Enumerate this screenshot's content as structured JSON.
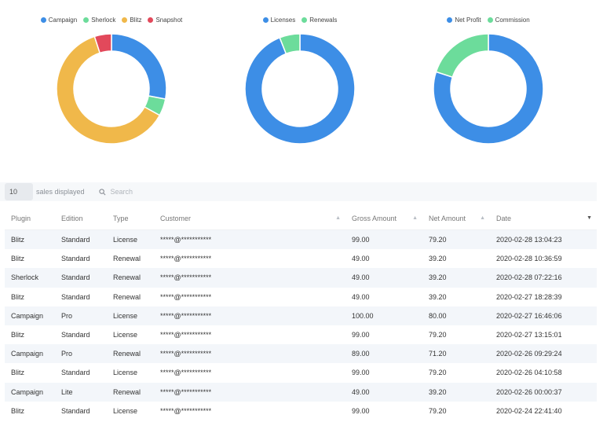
{
  "chart_data": [
    {
      "type": "pie",
      "donut": true,
      "categories": [
        "Campaign",
        "Sherlock",
        "Blitz",
        "Snapshot"
      ],
      "values": [
        28,
        5,
        62,
        5
      ],
      "colors": [
        "#3d8ee6",
        "#6cdc9b",
        "#f0b84a",
        "#e2495b"
      ]
    },
    {
      "type": "pie",
      "donut": true,
      "categories": [
        "Licenses",
        "Renewals"
      ],
      "values": [
        94,
        6
      ],
      "colors": [
        "#3d8ee6",
        "#6cdc9b"
      ]
    },
    {
      "type": "pie",
      "donut": true,
      "categories": [
        "Net Profit",
        "Commission"
      ],
      "values": [
        80,
        20
      ],
      "colors": [
        "#3d8ee6",
        "#6cdc9b"
      ]
    }
  ],
  "toolbar": {
    "per_page": "10",
    "per_page_label": "sales displayed",
    "search_placeholder": "Search"
  },
  "table": {
    "columns": [
      "Plugin",
      "Edition",
      "Type",
      "Customer",
      "Gross Amount",
      "Net Amount",
      "Date"
    ],
    "rows": [
      [
        "Blitz",
        "Standard",
        "License",
        "*****@***********",
        "99.00",
        "79.20",
        "2020-02-28 13:04:23"
      ],
      [
        "Blitz",
        "Standard",
        "Renewal",
        "*****@***********",
        "49.00",
        "39.20",
        "2020-02-28 10:36:59"
      ],
      [
        "Sherlock",
        "Standard",
        "Renewal",
        "*****@***********",
        "49.00",
        "39.20",
        "2020-02-28 07:22:16"
      ],
      [
        "Blitz",
        "Standard",
        "Renewal",
        "*****@***********",
        "49.00",
        "39.20",
        "2020-02-27 18:28:39"
      ],
      [
        "Campaign",
        "Pro",
        "License",
        "*****@***********",
        "100.00",
        "80.00",
        "2020-02-27 16:46:06"
      ],
      [
        "Blitz",
        "Standard",
        "License",
        "*****@***********",
        "99.00",
        "79.20",
        "2020-02-27 13:15:01"
      ],
      [
        "Campaign",
        "Pro",
        "Renewal",
        "*****@***********",
        "89.00",
        "71.20",
        "2020-02-26 09:29:24"
      ],
      [
        "Blitz",
        "Standard",
        "License",
        "*****@***********",
        "99.00",
        "79.20",
        "2020-02-26 04:10:58"
      ],
      [
        "Campaign",
        "Lite",
        "Renewal",
        "*****@***********",
        "49.00",
        "39.20",
        "2020-02-26 00:00:37"
      ],
      [
        "Blitz",
        "Standard",
        "License",
        "*****@***********",
        "99.00",
        "79.20",
        "2020-02-24 22:41:40"
      ]
    ]
  }
}
